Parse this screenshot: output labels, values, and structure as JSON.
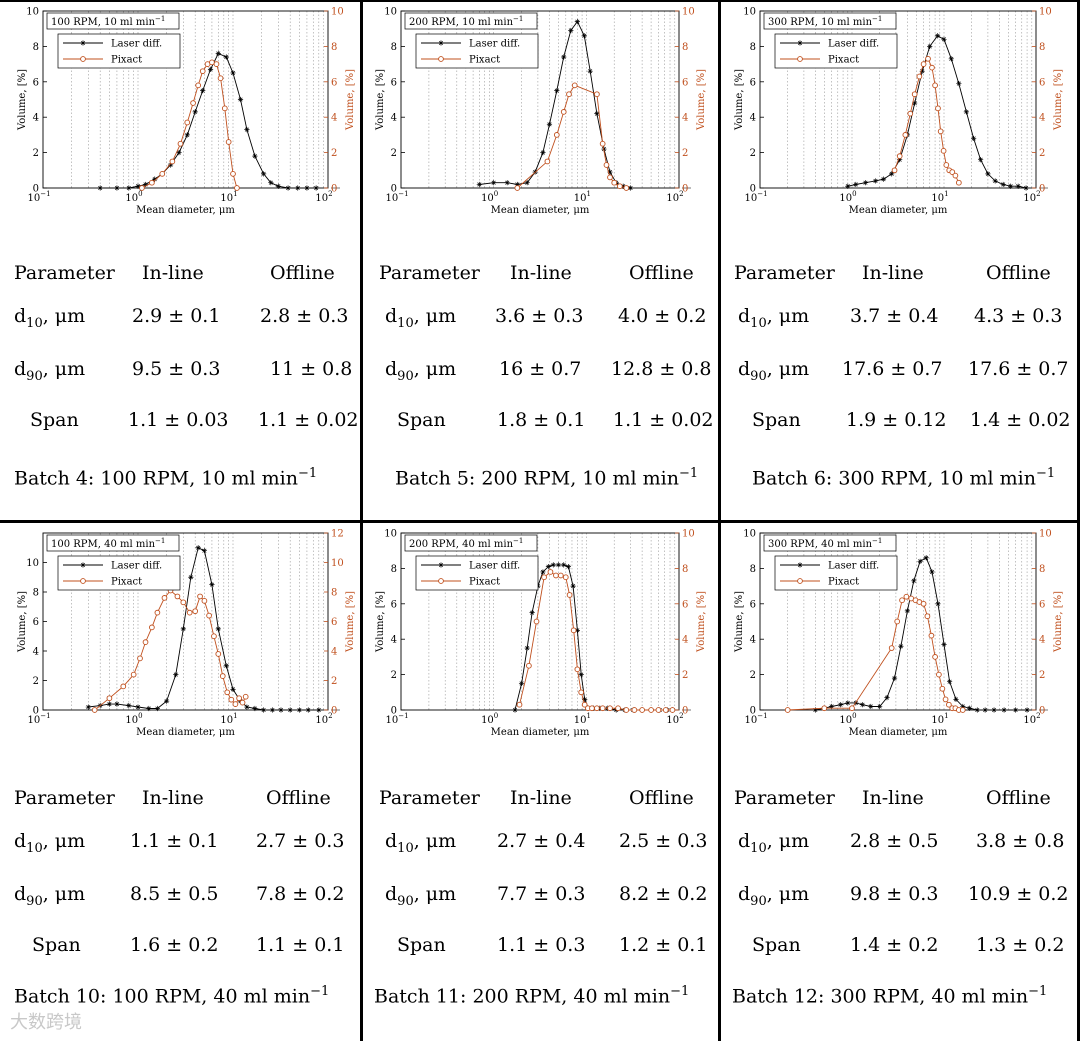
{
  "figure": {
    "watermark": "大数跨境"
  },
  "table_headers": [
    "Parameter",
    "In-line",
    "Offline"
  ],
  "row_labels": {
    "d10_main": "d",
    "d10_sub": "10",
    "d10_unit": ", μm",
    "d90_main": "d",
    "d90_sub": "90",
    "d90_unit": ", μm",
    "span": "Span"
  },
  "batches": [
    {
      "caption": "Batch 4: 100 RPM, 10 ml min",
      "caption_sup": "−1",
      "d10": {
        "inline": "2.9 ± 0.1",
        "offline": "2.8 ± 0.3"
      },
      "d90": {
        "inline": "9.5 ± 0.3",
        "offline": "11 ± 0.8"
      },
      "span": {
        "inline": "1.1 ± 0.03",
        "offline": "1.1 ± 0.02"
      }
    },
    {
      "caption": "Batch 5: 200 RPM, 10 ml min",
      "caption_sup": "−1",
      "d10": {
        "inline": "3.6  ± 0.3",
        "offline": "4.0 ± 0.2"
      },
      "d90": {
        "inline": "16 ± 0.7",
        "offline": "12.8 ± 0.8"
      },
      "span": {
        "inline": "1.8 ± 0.1",
        "offline": "1.1 ± 0.02"
      }
    },
    {
      "caption": "Batch 6: 300 RPM, 10 ml min",
      "caption_sup": "−1",
      "d10": {
        "inline": "3.7 ± 0.4",
        "offline": "4.3 ± 0.3"
      },
      "d90": {
        "inline": "17.6 ± 0.7",
        "offline": "17.6 ± 0.7"
      },
      "span": {
        "inline": "1.9 ± 0.12",
        "offline": "1.4 ± 0.02"
      }
    },
    {
      "caption": "Batch 10: 100 RPM, 40 ml min",
      "caption_sup": "−1",
      "d10": {
        "inline": "1.1 ± 0.1",
        "offline": "2.7 ± 0.3"
      },
      "d90": {
        "inline": "8.5 ± 0.5",
        "offline": "7.8 ± 0.2"
      },
      "span": {
        "inline": "1.6 ± 0.2",
        "offline": "1.1 ± 0.1"
      }
    },
    {
      "caption": "Batch 11: 200 RPM, 40 ml min",
      "caption_sup": "−1",
      "d10": {
        "inline": "2.7 ± 0.4",
        "offline": "2.5 ± 0.3"
      },
      "d90": {
        "inline": "7.7 ± 0.3",
        "offline": "8.2 ± 0.2"
      },
      "span": {
        "inline": "1.1 ± 0.3",
        "offline": "1.2 ± 0.1"
      }
    },
    {
      "caption": "Batch 12: 300 RPM, 40 ml min",
      "caption_sup": "−1",
      "d10": {
        "inline": "2.8 ± 0.5",
        "offline": "3.8 ± 0.8"
      },
      "d90": {
        "inline": "9.8 ± 0.3",
        "offline": "10.9 ± 0.2"
      },
      "span": {
        "inline": "1.4 ± 0.2",
        "offline": "1.3 ± 0.2"
      }
    }
  ],
  "chart_data": [
    {
      "type": "line",
      "title": "100 RPM, 10 ml min",
      "title_sup": "−1",
      "xlabel": "Mean diameter, μm",
      "ylabel": "Volume, [%]",
      "y2label": "Volume, [%]",
      "xscale": "log",
      "xlim": [
        0.1,
        100
      ],
      "ylim": [
        0,
        10
      ],
      "y2lim": [
        0,
        10
      ],
      "yticks": [
        0,
        2,
        4,
        6,
        8,
        10
      ],
      "y2ticks": [
        0,
        2,
        4,
        6,
        8,
        10
      ],
      "xticks": [
        {
          "base": "10",
          "exp": "−1"
        },
        {
          "base": "10",
          "exp": "0"
        },
        {
          "base": "10",
          "exp": "1"
        },
        {
          "base": "10",
          "exp": "2"
        }
      ],
      "legend": {
        "position": "top-left",
        "entries": [
          "Laser diff.",
          "Pixact"
        ]
      },
      "colors": {
        "laser": "#000000",
        "pixact": "#c0501e"
      },
      "series": [
        {
          "name": "Laser diff.",
          "axis": "left",
          "x": [
            0.4,
            0.6,
            0.8,
            1,
            1.2,
            1.5,
            1.8,
            2.2,
            2.7,
            3.3,
            4,
            4.8,
            5.8,
            7,
            8.5,
            10,
            12,
            14,
            17,
            21,
            25,
            30,
            38,
            48,
            60,
            75
          ],
          "y": [
            0,
            0,
            0,
            0.1,
            0.2,
            0.5,
            0.8,
            1.3,
            2,
            3,
            4.3,
            5.5,
            6.7,
            7.6,
            7.4,
            6.5,
            5,
            3.3,
            1.8,
            0.8,
            0.3,
            0.1,
            0,
            0,
            0,
            0
          ]
        },
        {
          "name": "Pixact",
          "axis": "right",
          "x": [
            1.1,
            1.4,
            1.8,
            2.3,
            2.8,
            3.3,
            3.8,
            4.3,
            4.8,
            5.4,
            6,
            6.7,
            7.4,
            8.2,
            9,
            10,
            11
          ],
          "y": [
            0,
            0.3,
            0.8,
            1.5,
            2.5,
            3.7,
            4.8,
            5.8,
            6.6,
            7,
            7.1,
            7,
            6.2,
            4.5,
            2.6,
            0.8,
            0
          ]
        }
      ]
    },
    {
      "type": "line",
      "title": "200 RPM, 10 ml min",
      "title_sup": "−1",
      "xlabel": "Mean diameter, μm",
      "ylabel": "Volume, [%]",
      "y2label": "Volume, [%]",
      "xscale": "log",
      "xlim": [
        0.1,
        100
      ],
      "ylim": [
        0,
        10
      ],
      "y2lim": [
        0,
        10
      ],
      "yticks": [
        0,
        2,
        4,
        6,
        8,
        10
      ],
      "y2ticks": [
        0,
        2,
        4,
        6,
        8,
        10
      ],
      "xticks": [
        {
          "base": "10",
          "exp": "−1"
        },
        {
          "base": "10",
          "exp": "0"
        },
        {
          "base": "10",
          "exp": "1"
        },
        {
          "base": "10",
          "exp": "2"
        }
      ],
      "legend": {
        "position": "top-left",
        "entries": [
          "Laser diff.",
          "Pixact"
        ]
      },
      "colors": {
        "laser": "#000000",
        "pixact": "#c0501e"
      },
      "series": [
        {
          "name": "Laser diff.",
          "axis": "left",
          "x": [
            0.7,
            1,
            1.4,
            1.8,
            2.3,
            2.8,
            3.4,
            4,
            4.8,
            5.7,
            6.8,
            8,
            9.5,
            11,
            13,
            15.5,
            18,
            21,
            25,
            30
          ],
          "y": [
            0.2,
            0.3,
            0.3,
            0.2,
            0.3,
            0.9,
            2,
            3.6,
            5.5,
            7.4,
            8.9,
            9.4,
            8.6,
            6.6,
            4.2,
            2.2,
            0.9,
            0.3,
            0.1,
            0
          ]
        },
        {
          "name": "Pixact",
          "axis": "right",
          "x": [
            1.8,
            3.8,
            4.8,
            5.7,
            6.5,
            7.5,
            13,
            15,
            16.5,
            18,
            20,
            23,
            27
          ],
          "y": [
            0,
            1.5,
            3,
            4.3,
            5.3,
            5.8,
            5.3,
            2.5,
            1.3,
            0.6,
            0.3,
            0.1,
            0
          ]
        }
      ]
    },
    {
      "type": "line",
      "title": "300 RPM, 10 ml min",
      "title_sup": "−1",
      "xlabel": "Mean diameter, μm",
      "ylabel": "Volume, [%]",
      "y2label": "Volume, [%]",
      "xscale": "log",
      "xlim": [
        0.1,
        100
      ],
      "ylim": [
        0,
        10
      ],
      "y2lim": [
        0,
        10
      ],
      "yticks": [
        0,
        2,
        4,
        6,
        8,
        10
      ],
      "y2ticks": [
        0,
        2,
        4,
        6,
        8,
        10
      ],
      "xticks": [
        {
          "base": "10",
          "exp": "−1"
        },
        {
          "base": "10",
          "exp": "0"
        },
        {
          "base": "10",
          "exp": "1"
        },
        {
          "base": "10",
          "exp": "2"
        }
      ],
      "legend": {
        "position": "top-left",
        "entries": [
          "Laser diff.",
          "Pixact"
        ]
      },
      "colors": {
        "laser": "#000000",
        "pixact": "#c0501e"
      },
      "series": [
        {
          "name": "Laser diff.",
          "axis": "left",
          "x": [
            0.9,
            1.1,
            1.4,
            1.8,
            2.2,
            2.7,
            3.3,
            4,
            4.8,
            5.8,
            7,
            8.5,
            10,
            12,
            14.5,
            17.5,
            21,
            25,
            30,
            36,
            44,
            53,
            64,
            78
          ],
          "y": [
            0.1,
            0.2,
            0.3,
            0.4,
            0.5,
            0.8,
            1.6,
            3,
            4.8,
            6.6,
            8,
            8.6,
            8.4,
            7.3,
            5.9,
            4.3,
            2.8,
            1.6,
            0.8,
            0.4,
            0.2,
            0.1,
            0.1,
            0
          ]
        },
        {
          "name": "Pixact",
          "axis": "right",
          "x": [
            2.9,
            3.3,
            3.8,
            4.3,
            4.8,
            5.4,
            6,
            6.7,
            7.4,
            8,
            8.6,
            9.2,
            9.9,
            10.6,
            11.4,
            12.3,
            13.3,
            14.5
          ],
          "y": [
            1,
            1.8,
            3,
            4.2,
            5.3,
            6.3,
            7,
            7.3,
            6.8,
            5.8,
            4.5,
            3.2,
            2.1,
            1.3,
            1,
            0.9,
            0.7,
            0.3
          ]
        }
      ]
    },
    {
      "type": "line",
      "title": "100 RPM, 40 ml min",
      "title_sup": "−1",
      "xlabel": "Mean diameter, μm",
      "ylabel": "Volume, [%]",
      "y2label": "Volume, [%]",
      "xscale": "log",
      "xlim": [
        0.1,
        100
      ],
      "ylim": [
        0,
        12
      ],
      "y2lim": [
        0,
        12
      ],
      "yticks": [
        0,
        2,
        4,
        6,
        8,
        10
      ],
      "y2ticks": [
        0,
        2,
        4,
        6,
        8,
        10,
        12
      ],
      "xticks": [
        {
          "base": "10",
          "exp": "−1"
        },
        {
          "base": "10",
          "exp": "0"
        },
        {
          "base": "10",
          "exp": "1"
        },
        {
          "base": "10",
          "exp": "2"
        }
      ],
      "legend": {
        "position": "top-left",
        "entries": [
          "Laser diff.",
          "Pixact"
        ]
      },
      "colors": {
        "laser": "#000000",
        "pixact": "#c0501e"
      },
      "series": [
        {
          "name": "Laser diff.",
          "axis": "left",
          "x": [
            0.3,
            0.4,
            0.5,
            0.6,
            0.8,
            1,
            1.3,
            1.6,
            2,
            2.5,
            3,
            3.6,
            4.3,
            5,
            6,
            7,
            8.5,
            10,
            12,
            14,
            17,
            21,
            26,
            32,
            40,
            50,
            62,
            80
          ],
          "y": [
            0.2,
            0.3,
            0.4,
            0.4,
            0.3,
            0.2,
            0.1,
            0.1,
            0.6,
            2.4,
            5.5,
            9,
            11,
            10.8,
            8.5,
            5.5,
            3,
            1.4,
            0.6,
            0.2,
            0.1,
            0,
            0,
            0,
            0,
            0,
            0,
            0
          ]
        },
        {
          "name": "Pixact",
          "axis": "right",
          "x": [
            0.35,
            0.5,
            0.7,
            0.9,
            1.05,
            1.2,
            1.4,
            1.6,
            1.9,
            2.2,
            2.6,
            3,
            3.5,
            4,
            4.5,
            5,
            5.6,
            6.3,
            7,
            7.8,
            8.7,
            9.6,
            10.6,
            11.6,
            12.6,
            13.6
          ],
          "y": [
            0,
            0.8,
            1.6,
            2.4,
            3.5,
            4.6,
            5.6,
            6.6,
            7.6,
            8.1,
            7.7,
            7.3,
            6.6,
            6.7,
            7.7,
            7.4,
            6.4,
            5,
            3.8,
            2.3,
            1.2,
            0.7,
            0.4,
            0.8,
            0.5,
            0.9
          ]
        }
      ]
    },
    {
      "type": "line",
      "title": "200 RPM, 40 ml min",
      "title_sup": "−1",
      "xlabel": "Mean diameter, μm",
      "ylabel": "Volume, [%]",
      "y2label": "Volume, [%]",
      "xscale": "log",
      "xlim": [
        0.1,
        100
      ],
      "ylim": [
        0,
        10
      ],
      "y2lim": [
        0,
        10
      ],
      "yticks": [
        0,
        2,
        4,
        6,
        8,
        10
      ],
      "y2ticks": [
        0,
        2,
        4,
        6,
        8,
        10
      ],
      "xticks": [
        {
          "base": "10",
          "exp": "−1"
        },
        {
          "base": "10",
          "exp": "0"
        },
        {
          "base": "10",
          "exp": "1"
        },
        {
          "base": "10",
          "exp": "2"
        }
      ],
      "legend": {
        "position": "top-left",
        "entries": [
          "Laser diff.",
          "Pixact"
        ]
      },
      "colors": {
        "laser": "#000000",
        "pixact": "#c0501e"
      },
      "series": [
        {
          "name": "Laser diff.",
          "axis": "left",
          "x": [
            1.7,
            2,
            2.3,
            2.6,
            3,
            3.4,
            3.9,
            4.4,
            5,
            5.7,
            6.4,
            7.2,
            8,
            8.8,
            9.6,
            10.5,
            12,
            14,
            17,
            21,
            26,
            32,
            40,
            50,
            62,
            75,
            85
          ],
          "y": [
            0,
            1.5,
            3.5,
            5.5,
            7,
            7.8,
            8.1,
            8.2,
            8.2,
            8.2,
            8.1,
            7,
            4.5,
            2,
            0.6,
            0.1,
            0.1,
            0.1,
            0.1,
            0,
            0,
            0,
            0,
            0,
            0,
            0,
            0
          ]
        },
        {
          "name": "Pixact",
          "axis": "right",
          "x": [
            1.9,
            2.4,
            2.9,
            3.5,
            4.1,
            4.7,
            5.3,
            6,
            6.6,
            7.3,
            8,
            8.8,
            9.6,
            10.4,
            11.5,
            13,
            15,
            18,
            22,
            27,
            33,
            40,
            50,
            60,
            72,
            85
          ],
          "y": [
            0.3,
            2.5,
            5,
            7.5,
            7.8,
            7.6,
            7.6,
            7.5,
            6.5,
            4.5,
            2.3,
            1,
            0.3,
            0.1,
            0.1,
            0.1,
            0.1,
            0.1,
            0.1,
            0,
            0,
            0,
            0,
            0,
            0,
            0
          ]
        }
      ]
    },
    {
      "type": "line",
      "title": "300 RPM, 40 ml min",
      "title_sup": "−1",
      "xlabel": "Mean diameter, μm",
      "ylabel": "Volume, [%]",
      "y2label": "Volume, [%]",
      "xscale": "log",
      "xlim": [
        0.1,
        100
      ],
      "ylim": [
        0,
        10
      ],
      "y2lim": [
        0,
        10
      ],
      "yticks": [
        0,
        2,
        4,
        6,
        8,
        10
      ],
      "y2ticks": [
        0,
        2,
        4,
        6,
        8,
        10
      ],
      "xticks": [
        {
          "base": "10",
          "exp": "−1"
        },
        {
          "base": "10",
          "exp": "0"
        },
        {
          "base": "10",
          "exp": "1"
        },
        {
          "base": "10",
          "exp": "2"
        }
      ],
      "legend": {
        "position": "top-left",
        "entries": [
          "Laser diff.",
          "Pixact"
        ]
      },
      "colors": {
        "laser": "#000000",
        "pixact": "#c0501e"
      },
      "series": [
        {
          "name": "Laser diff.",
          "axis": "left",
          "x": [
            0.4,
            0.5,
            0.6,
            0.75,
            0.9,
            1.1,
            1.3,
            1.6,
            2,
            2.4,
            2.9,
            3.4,
            4,
            4.7,
            5.5,
            6.4,
            7.4,
            8.6,
            10,
            11.5,
            13.5,
            16,
            19,
            23,
            28,
            35,
            45,
            60,
            80
          ],
          "y": [
            0,
            0.1,
            0.2,
            0.3,
            0.4,
            0.4,
            0.3,
            0.2,
            0.2,
            0.7,
            1.8,
            3.6,
            5.6,
            7.3,
            8.4,
            8.6,
            7.8,
            6,
            3.7,
            1.6,
            0.6,
            0.2,
            0.1,
            0,
            0,
            0,
            0,
            0,
            0
          ]
        },
        {
          "name": "Pixact",
          "axis": "right",
          "x": [
            0.2,
            0.5,
            1,
            2.7,
            3.1,
            3.5,
            3.9,
            4.4,
            4.9,
            5.4,
            6,
            6.6,
            7.3,
            8,
            8.8,
            9.6,
            10.4,
            11.3,
            12.3,
            13.3,
            14.5,
            16
          ],
          "y": [
            0,
            0.1,
            0.1,
            3.5,
            5,
            6.2,
            6.4,
            6.3,
            6.2,
            6.1,
            6,
            5.3,
            4.2,
            3,
            2,
            1.2,
            0.6,
            0.3,
            0.1,
            0.1,
            0,
            0
          ]
        }
      ]
    }
  ]
}
